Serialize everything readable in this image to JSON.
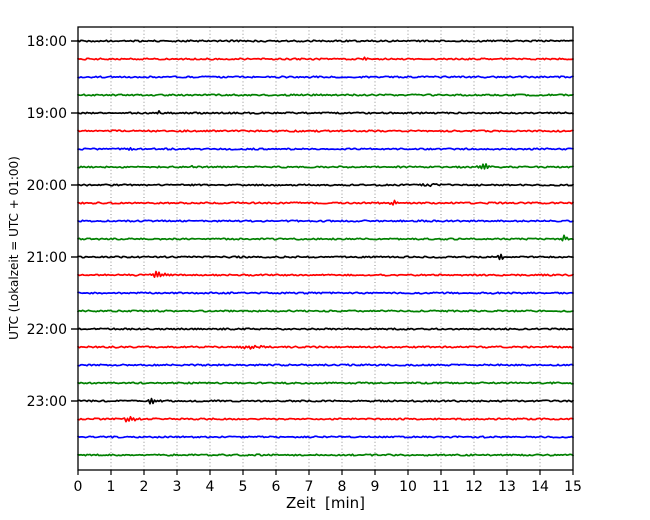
{
  "chart_data": {
    "type": "line",
    "subtype": "helicorder-seismogram",
    "title": "",
    "xlabel": "Zeit  [min]",
    "ylabel": "UTC (Lokalzeit = UTC + 01:00)",
    "x_range": [
      0,
      15
    ],
    "x_tick_labels": [
      "0",
      "1",
      "2",
      "3",
      "4",
      "5",
      "6",
      "7",
      "8",
      "9",
      "10",
      "11",
      "12",
      "13",
      "14",
      "15"
    ],
    "y_tick_labels": [
      "18:00",
      "19:00",
      "20:00",
      "21:00",
      "22:00",
      "23:00"
    ],
    "minutes_per_row": 15,
    "grid": "vertical-dotted",
    "trace_colors": {
      "hour": "#000000",
      "quarter15": "#ff0000",
      "quarter30": "#0000ff",
      "quarter45": "#008000"
    },
    "traces": [
      {
        "time": "18:00",
        "color": "#000000",
        "events": []
      },
      {
        "time": "18:15",
        "color": "#ff0000",
        "events": [
          {
            "m": 8.75,
            "amp": 3.0,
            "sigma": 0.09
          }
        ]
      },
      {
        "time": "18:30",
        "color": "#0000ff",
        "events": []
      },
      {
        "time": "18:45",
        "color": "#008000",
        "events": []
      },
      {
        "time": "19:00",
        "color": "#000000",
        "events": [
          {
            "m": 2.42,
            "amp": 2.0,
            "sigma": 0.06
          }
        ]
      },
      {
        "time": "19:15",
        "color": "#ff0000",
        "events": [
          {
            "m": 1.15,
            "amp": 1.1,
            "sigma": 0.2
          }
        ]
      },
      {
        "time": "19:30",
        "color": "#0000ff",
        "events": [
          {
            "m": 1.5,
            "amp": 1.1,
            "sigma": 0.15
          }
        ]
      },
      {
        "time": "19:45",
        "color": "#008000",
        "events": [
          {
            "m": 3.4,
            "amp": 1.6,
            "sigma": 0.08
          },
          {
            "m": 12.3,
            "amp": 3.5,
            "sigma": 0.1
          }
        ]
      },
      {
        "time": "20:00",
        "color": "#000000",
        "events": [
          {
            "m": 10.55,
            "amp": 3.3,
            "sigma": 0.12,
            "sigma_r": 0.55
          }
        ]
      },
      {
        "time": "20:15",
        "color": "#ff0000",
        "events": [
          {
            "m": 9.6,
            "amp": 2.6,
            "sigma": 0.08
          }
        ]
      },
      {
        "time": "20:30",
        "color": "#0000ff",
        "events": []
      },
      {
        "time": "20:45",
        "color": "#008000",
        "events": [
          {
            "m": 14.78,
            "amp": 3.0,
            "sigma": 0.1
          }
        ]
      },
      {
        "time": "21:00",
        "color": "#000000",
        "events": [
          {
            "m": 12.8,
            "amp": 2.6,
            "sigma": 0.08
          }
        ]
      },
      {
        "time": "21:15",
        "color": "#ff0000",
        "events": [
          {
            "m": 2.4,
            "amp": 2.6,
            "sigma": 0.09,
            "sigma_r": 0.22
          }
        ]
      },
      {
        "time": "21:30",
        "color": "#0000ff",
        "events": []
      },
      {
        "time": "21:45",
        "color": "#008000",
        "events": []
      },
      {
        "time": "22:00",
        "color": "#000000",
        "events": []
      },
      {
        "time": "22:15",
        "color": "#ff0000",
        "events": [
          {
            "m": 5.2,
            "amp": 1.4,
            "sigma": 0.3
          }
        ]
      },
      {
        "time": "22:30",
        "color": "#0000ff",
        "events": []
      },
      {
        "time": "22:45",
        "color": "#008000",
        "events": []
      },
      {
        "time": "23:00",
        "color": "#000000",
        "events": [
          {
            "m": 2.2,
            "amp": 3.2,
            "sigma": 0.07,
            "sigma_r": 0.15
          }
        ]
      },
      {
        "time": "23:15",
        "color": "#ff0000",
        "events": [
          {
            "m": 1.5,
            "amp": 3.2,
            "sigma": 0.07,
            "sigma_r": 0.3
          }
        ]
      },
      {
        "time": "23:30",
        "color": "#0000ff",
        "events": []
      },
      {
        "time": "23:45",
        "color": "#008000",
        "events": []
      }
    ]
  }
}
